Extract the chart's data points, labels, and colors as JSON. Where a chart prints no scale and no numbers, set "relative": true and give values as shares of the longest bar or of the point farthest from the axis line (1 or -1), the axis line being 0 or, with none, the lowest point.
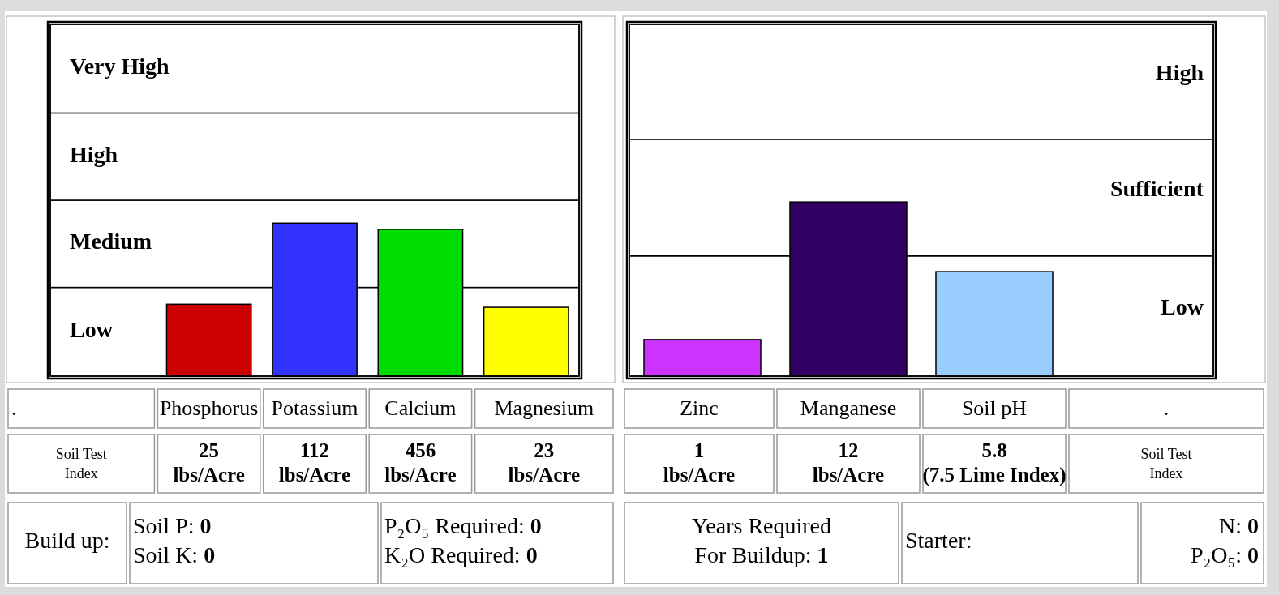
{
  "chart_data": [
    {
      "type": "bar",
      "relative": true,
      "categories": [
        ".",
        "Phosphorus",
        "Potassium",
        "Calcium",
        "Magnesium"
      ],
      "series": [
        {
          "colors": [
            null,
            "#cc0000",
            "#3333ff",
            "#00dd00",
            "#ffff00"
          ],
          "values": [
            null,
            0.47,
            1,
            0.96,
            0.45
          ]
        }
      ],
      "value_labels": [
        null,
        "25 lbs/Acre",
        "112 lbs/Acre",
        "456 lbs/Acre",
        "23 lbs/Acre"
      ],
      "annotations": [
        "Soil Test Index"
      ],
      "bands": [
        {
          "axis": "y",
          "from": 0,
          "to": 0.58,
          "label": "Low",
          "color": "#ffffff"
        },
        {
          "axis": "y",
          "from": 0.58,
          "to": 1.15,
          "label": "Medium",
          "color": "#ffffff"
        },
        {
          "axis": "y",
          "from": 1.15,
          "to": 1.72,
          "label": "High",
          "color": "#ffffff"
        },
        {
          "axis": "y",
          "from": 1.72,
          "to": 2.3,
          "label": "Very High",
          "color": "#ffffff"
        }
      ]
    },
    {
      "type": "bar",
      "relative": true,
      "categories": [
        "Zinc",
        "Manganese",
        "Soil pH",
        "."
      ],
      "series": [
        {
          "colors": [
            "#cc33ff",
            "#330066",
            "#99ccff",
            null
          ],
          "values": [
            0.21,
            1,
            0.6,
            null
          ]
        }
      ],
      "value_labels": [
        "1 lbs/Acre",
        "12 lbs/Acre",
        "5.8 (7.5 Lime Index)",
        null
      ],
      "annotations": [
        "Soil Test Index"
      ],
      "bands": [
        {
          "axis": "y",
          "from": 0,
          "to": 0.69,
          "label": "Low",
          "color": "#ffffff"
        },
        {
          "axis": "y",
          "from": 0.69,
          "to": 1.36,
          "label": "Sufficient",
          "color": "#ffffff"
        },
        {
          "axis": "y",
          "from": 1.36,
          "to": 2.02,
          "label": "High",
          "color": "#ffffff"
        }
      ]
    },
    {
      "type": "other",
      "annotations": [
        "Build up:",
        "Soil P: 0\nSoil K: 0",
        "P₂O₅ Required: 0\nK₂O Required: 0",
        "Years Required\nFor Buildup: 1",
        "Starter:",
        "N: 0\nP₂O₅: 0"
      ]
    }
  ]
}
